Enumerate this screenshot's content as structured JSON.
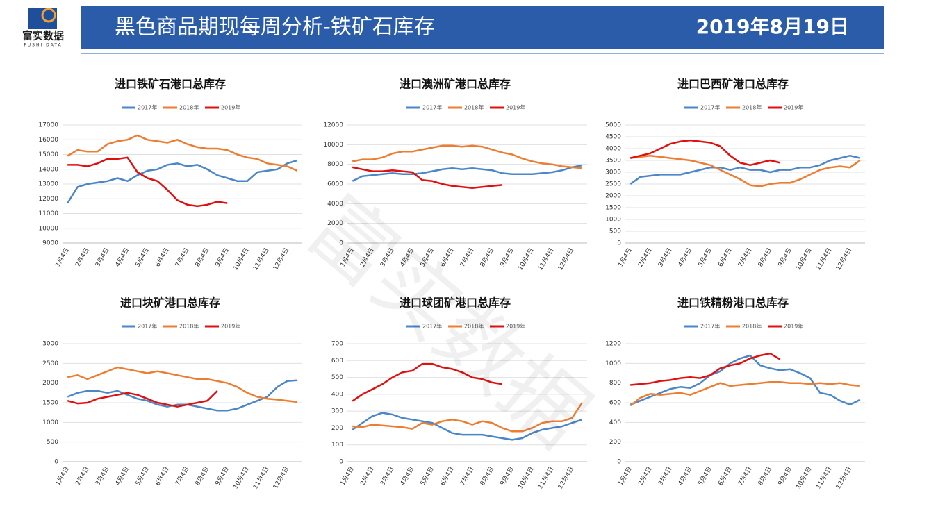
{
  "header": {
    "logo_name": "富实数据",
    "logo_sub": "FUSHI DATA",
    "title": "黑色商品期现每周分析-铁矿石库存",
    "date": "2019年8月19日"
  },
  "watermark": "富实数据",
  "chart_data": [
    {
      "type": "line",
      "title": "进口铁矿石港口总库存",
      "categories": [
        "1月4日",
        null,
        "2月4日",
        null,
        "3月4日",
        null,
        "4月4日",
        null,
        "5月4日",
        null,
        "6月4日",
        null,
        "7月4日",
        null,
        "8月4日",
        null,
        "9月4日",
        null,
        "10月4日",
        null,
        "11月4日",
        null,
        "12月4日",
        null
      ],
      "series": [
        {
          "name": "2017年",
          "color": "#4a86c8",
          "values": [
            11700,
            12800,
            13000,
            13100,
            13200,
            13400,
            13200,
            13600,
            13900,
            14000,
            14300,
            14400,
            14200,
            14300,
            14000,
            13600,
            13400,
            13200,
            13200,
            13800,
            13900,
            14000,
            14400,
            14600
          ]
        },
        {
          "name": "2018年",
          "color": "#ed7d31",
          "values": [
            14900,
            15300,
            15200,
            15200,
            15700,
            15900,
            16000,
            16300,
            16000,
            15900,
            15800,
            16000,
            15700,
            15500,
            15400,
            15400,
            15300,
            15000,
            14800,
            14700,
            14400,
            14300,
            14200,
            13900
          ]
        },
        {
          "name": "2019年",
          "color": "#e01010",
          "values": [
            14300,
            14300,
            14200,
            14400,
            14700,
            14700,
            14800,
            13800,
            13400,
            13200,
            12600,
            11900,
            11600,
            11500,
            11600,
            11800,
            11700,
            null,
            null,
            null,
            null,
            null,
            null,
            null
          ]
        }
      ],
      "ylim": [
        9000,
        17000
      ],
      "yticks": [
        9000,
        10000,
        11000,
        12000,
        13000,
        14000,
        15000,
        16000,
        17000
      ]
    },
    {
      "type": "line",
      "title": "进口澳洲矿港口总库存",
      "categories": [
        "1月4日",
        null,
        "2月4日",
        null,
        "3月4日",
        null,
        "4月4日",
        null,
        "5月4日",
        null,
        "6月4日",
        null,
        "7月4日",
        null,
        "8月4日",
        null,
        "9月4日",
        null,
        "10月4日",
        null,
        "11月4日",
        null,
        "12月4日",
        null
      ],
      "series": [
        {
          "name": "2017年",
          "color": "#4a86c8",
          "values": [
            6300,
            6800,
            6900,
            7000,
            7100,
            7000,
            7000,
            7100,
            7300,
            7500,
            7600,
            7500,
            7600,
            7500,
            7400,
            7100,
            7000,
            7000,
            7000,
            7100,
            7200,
            7400,
            7700,
            7900
          ]
        },
        {
          "name": "2018年",
          "color": "#ed7d31",
          "values": [
            8300,
            8500,
            8500,
            8700,
            9100,
            9300,
            9300,
            9500,
            9700,
            9900,
            9900,
            9800,
            9900,
            9800,
            9500,
            9200,
            9000,
            8600,
            8300,
            8100,
            8000,
            7800,
            7700,
            7600
          ]
        },
        {
          "name": "2019年",
          "color": "#e01010",
          "values": [
            7700,
            7500,
            7300,
            7300,
            7400,
            7300,
            7200,
            6400,
            6300,
            6000,
            5800,
            5700,
            5600,
            5700,
            5800,
            5900,
            null,
            null,
            null,
            null,
            null,
            null,
            null,
            null
          ]
        }
      ],
      "ylim": [
        0,
        12000
      ],
      "yticks": [
        0,
        2000,
        4000,
        6000,
        8000,
        10000,
        12000
      ]
    },
    {
      "type": "line",
      "title": "进口巴西矿港口总库存",
      "categories": [
        "1月4日",
        null,
        "2月4日",
        null,
        "3月4日",
        null,
        "4月4日",
        null,
        "5月4日",
        null,
        "6月4日",
        null,
        "7月4日",
        null,
        "8月4日",
        null,
        "9月4日",
        null,
        "10月4日",
        null,
        "11月4日",
        null,
        "12月4日",
        null
      ],
      "series": [
        {
          "name": "2017年",
          "color": "#4a86c8",
          "values": [
            2500,
            2800,
            2850,
            2900,
            2900,
            2900,
            3000,
            3100,
            3200,
            3200,
            3100,
            3200,
            3100,
            3100,
            3000,
            3100,
            3100,
            3200,
            3200,
            3300,
            3500,
            3600,
            3700,
            3600
          ]
        },
        {
          "name": "2018年",
          "color": "#ed7d31",
          "values": [
            3600,
            3650,
            3700,
            3650,
            3600,
            3550,
            3500,
            3400,
            3300,
            3100,
            2900,
            2700,
            2450,
            2400,
            2500,
            2550,
            2550,
            2700,
            2900,
            3100,
            3200,
            3250,
            3200,
            3500
          ]
        },
        {
          "name": "2019年",
          "color": "#e01010",
          "values": [
            3600,
            3700,
            3800,
            4000,
            4200,
            4300,
            4350,
            4300,
            4250,
            4100,
            3700,
            3400,
            3300,
            3400,
            3500,
            3400,
            null,
            null,
            null,
            null,
            null,
            null,
            null,
            null
          ]
        }
      ],
      "ylim": [
        0,
        5000
      ],
      "yticks": [
        0,
        500,
        1000,
        1500,
        2000,
        2500,
        3000,
        3500,
        4000,
        4500,
        5000
      ]
    },
    {
      "type": "line",
      "title": "进口块矿港口总库存",
      "categories": [
        "1月4日",
        null,
        "2月4日",
        null,
        "3月4日",
        null,
        "4月4日",
        null,
        "5月4日",
        null,
        "6月4日",
        null,
        "7月4日",
        null,
        "8月4日",
        null,
        "9月4日",
        null,
        "10月4日",
        null,
        "11月4日",
        null,
        "12月4日",
        null
      ],
      "series": [
        {
          "name": "2017年",
          "color": "#4a86c8",
          "values": [
            1650,
            1750,
            1800,
            1800,
            1750,
            1800,
            1700,
            1600,
            1550,
            1450,
            1400,
            1450,
            1450,
            1400,
            1350,
            1300,
            1300,
            1350,
            1450,
            1550,
            1650,
            1900,
            2050,
            2070
          ]
        },
        {
          "name": "2018年",
          "color": "#ed7d31",
          "values": [
            2150,
            2200,
            2100,
            2200,
            2300,
            2400,
            2350,
            2300,
            2250,
            2300,
            2250,
            2200,
            2150,
            2100,
            2100,
            2050,
            2000,
            1900,
            1750,
            1650,
            1600,
            1580,
            1550,
            1520
          ]
        },
        {
          "name": "2019年",
          "color": "#e01010",
          "values": [
            1550,
            1480,
            1500,
            1600,
            1650,
            1700,
            1750,
            1700,
            1600,
            1500,
            1450,
            1400,
            1450,
            1500,
            1550,
            1800,
            null,
            null,
            null,
            null,
            null,
            null,
            null,
            null
          ]
        }
      ],
      "ylim": [
        0,
        3000
      ],
      "yticks": [
        0,
        500,
        1000,
        1500,
        2000,
        2500,
        3000
      ]
    },
    {
      "type": "line",
      "title": "进口球团矿港口总库存",
      "categories": [
        "1月4日",
        null,
        "2月4日",
        null,
        "3月4日",
        null,
        "4月4日",
        null,
        "5月4日",
        null,
        "6月4日",
        null,
        "7月4日",
        null,
        "8月4日",
        null,
        "9月4日",
        null,
        "10月4日",
        null,
        "11月4日",
        null,
        "12月4日",
        null
      ],
      "series": [
        {
          "name": "2017年",
          "color": "#4a86c8",
          "values": [
            190,
            230,
            270,
            290,
            280,
            260,
            250,
            240,
            230,
            200,
            170,
            160,
            160,
            160,
            150,
            140,
            130,
            140,
            170,
            190,
            200,
            210,
            230,
            250
          ]
        },
        {
          "name": "2018年",
          "color": "#ed7d31",
          "values": [
            210,
            205,
            220,
            215,
            210,
            205,
            195,
            230,
            220,
            240,
            250,
            240,
            220,
            240,
            230,
            200,
            180,
            180,
            200,
            230,
            240,
            240,
            260,
            350
          ]
        },
        {
          "name": "2019年",
          "color": "#e01010",
          "values": [
            360,
            400,
            430,
            460,
            500,
            530,
            540,
            580,
            580,
            560,
            550,
            530,
            500,
            490,
            470,
            460,
            null,
            null,
            null,
            null,
            null,
            null,
            null,
            null
          ]
        }
      ],
      "ylim": [
        0,
        700
      ],
      "yticks": [
        0,
        100,
        200,
        300,
        400,
        500,
        600,
        700
      ]
    },
    {
      "type": "line",
      "title": "进口铁精粉港口总库存",
      "categories": [
        "1月4日",
        null,
        "2月4日",
        null,
        "3月4日",
        null,
        "4月4日",
        null,
        "5月4日",
        null,
        "6月4日",
        null,
        "7月4日",
        null,
        "8月4日",
        null,
        "9月4日",
        null,
        "10月4日",
        null,
        "11月4日",
        null,
        "12月4日",
        null
      ],
      "series": [
        {
          "name": "2017年",
          "color": "#4a86c8",
          "values": [
            580,
            620,
            660,
            700,
            740,
            760,
            750,
            800,
            880,
            920,
            1000,
            1050,
            1080,
            980,
            950,
            930,
            940,
            900,
            850,
            700,
            680,
            620,
            580,
            630
          ]
        },
        {
          "name": "2018年",
          "color": "#ed7d31",
          "values": [
            570,
            650,
            690,
            680,
            690,
            700,
            680,
            720,
            760,
            800,
            770,
            780,
            790,
            800,
            810,
            810,
            800,
            800,
            790,
            800,
            790,
            800,
            780,
            770
          ]
        },
        {
          "name": "2019年",
          "color": "#e01010",
          "values": [
            780,
            790,
            800,
            820,
            830,
            850,
            860,
            850,
            880,
            950,
            980,
            1000,
            1050,
            1080,
            1100,
            1040,
            null,
            null,
            null,
            null,
            null,
            null,
            null,
            null
          ]
        }
      ],
      "ylim": [
        0,
        1200
      ],
      "yticks": [
        0,
        200,
        400,
        600,
        800,
        1000,
        1200
      ]
    }
  ]
}
